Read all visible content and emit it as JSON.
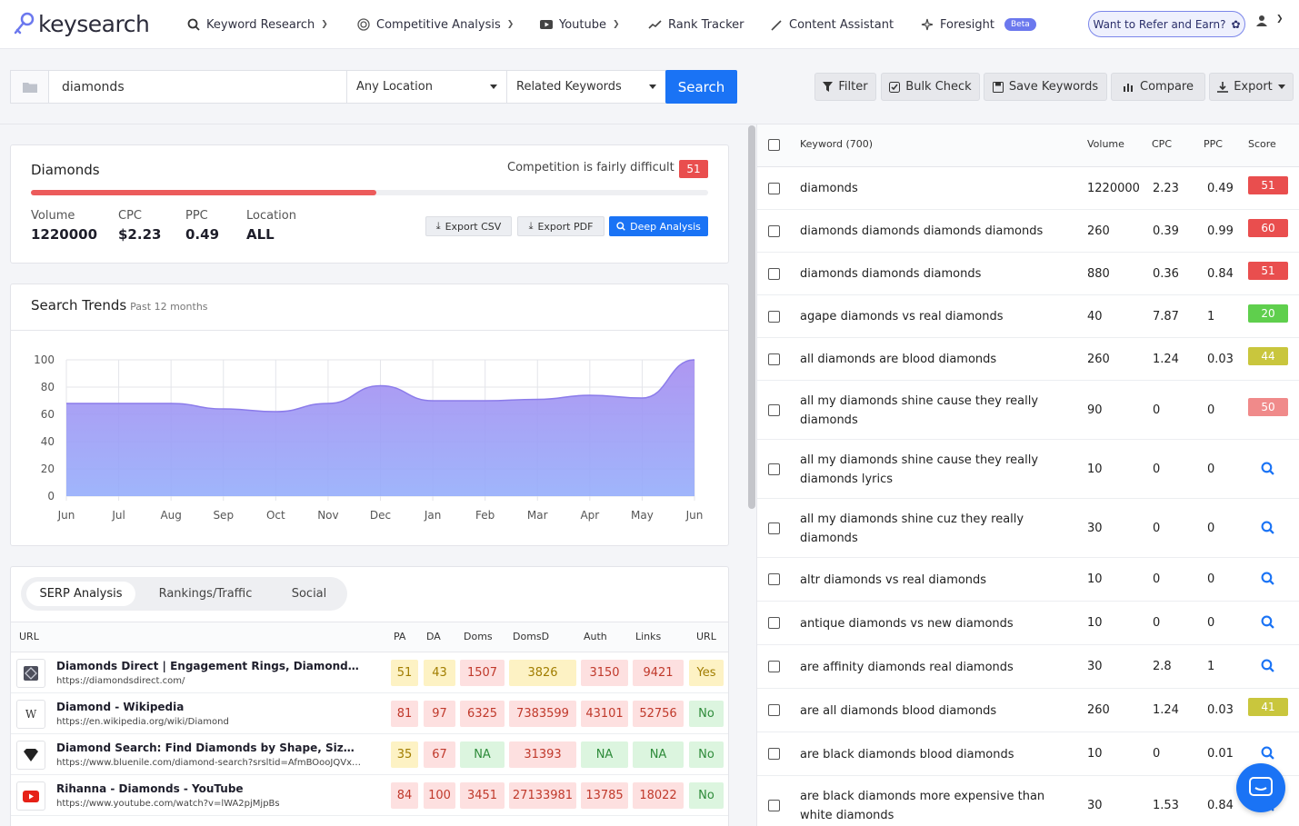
{
  "app": {
    "logo_text": "keysearch"
  },
  "nav": {
    "items": [
      {
        "label": "Keyword Research",
        "icon": "search-icon"
      },
      {
        "label": "Competitive Analysis",
        "icon": "target-icon"
      },
      {
        "label": "Youtube",
        "icon": "youtube-icon"
      },
      {
        "label": "Rank Tracker",
        "icon": "trend-icon"
      },
      {
        "label": "Content Assistant",
        "icon": "pen-icon"
      },
      {
        "label": "Foresight",
        "icon": "sparkle-icon"
      }
    ],
    "beta_label": "Beta",
    "refer_label": "Want to Refer and Earn?"
  },
  "search": {
    "keyword_value": "diamonds",
    "location_value": "Any Location",
    "mode_value": "Related Keywords",
    "search_label": "Search"
  },
  "toolbar": {
    "filter_label": "Filter",
    "bulk_label": "Bulk Check",
    "save_label": "Save Keywords",
    "compare_label": "Compare",
    "export_label": "Export"
  },
  "summary": {
    "title": "Diamonds",
    "competition_text": "Competition is fairly difficult",
    "score": "51",
    "score_color": "#e94e4e",
    "progress_fraction": 0.51,
    "metrics": [
      {
        "label": "Volume",
        "value": "1220000"
      },
      {
        "label": "CPC",
        "value": "$2.23"
      },
      {
        "label": "PPC",
        "value": "0.49"
      },
      {
        "label": "Location",
        "value": "ALL"
      }
    ],
    "export_csv_label": "Export CSV",
    "export_pdf_label": "Export PDF",
    "deep_analysis_label": "Deep Analysis"
  },
  "trends": {
    "title": "Search Trends",
    "subtitle": "Past 12 months"
  },
  "chart_data": {
    "type": "area",
    "title": "",
    "xlabel": "",
    "ylabel": "",
    "categories": [
      "Jun",
      "Jul",
      "Aug",
      "Sep",
      "Oct",
      "Nov",
      "Dec",
      "Jan",
      "Feb",
      "Mar",
      "Apr",
      "May",
      "Jun"
    ],
    "series": [
      {
        "values": [
          68,
          68,
          68,
          64,
          62,
          68,
          81,
          70,
          70,
          71,
          74,
          72,
          100
        ]
      }
    ],
    "ylim": [
      0,
      100
    ],
    "yticks": [
      0,
      20,
      40,
      60,
      80,
      100
    ],
    "grid": true,
    "fill_color": "#9aa4f5",
    "line_color": "#8b7bea"
  },
  "serp": {
    "tabs": [
      "SERP Analysis",
      "Rankings/Traffic",
      "Social"
    ],
    "headers": [
      "URL",
      "PA",
      "DA",
      "Doms",
      "DomsD",
      "Auth",
      "Links",
      "URL"
    ],
    "rows": [
      {
        "title": "Diamonds Direct | Engagement Rings, Diamonds, & Fine Jewelry",
        "url": "https://diamondsdirect.com/",
        "favicon": "diamond-grid-icon",
        "cells": [
          {
            "v": "51",
            "c": "yellow"
          },
          {
            "v": "43",
            "c": "yellow"
          },
          {
            "v": "1507",
            "c": "red"
          },
          {
            "v": "3826",
            "c": "yellow"
          },
          {
            "v": "3150",
            "c": "red"
          },
          {
            "v": "9421",
            "c": "red"
          },
          {
            "v": "Yes",
            "c": "yellow"
          }
        ]
      },
      {
        "title": "Diamond - Wikipedia",
        "url": "https://en.wikipedia.org/wiki/Diamond",
        "favicon": "wikipedia-icon",
        "cells": [
          {
            "v": "81",
            "c": "red"
          },
          {
            "v": "97",
            "c": "red"
          },
          {
            "v": "6325",
            "c": "red"
          },
          {
            "v": "7383599",
            "c": "red"
          },
          {
            "v": "43101",
            "c": "red"
          },
          {
            "v": "52756",
            "c": "red"
          },
          {
            "v": "No",
            "c": "green"
          }
        ]
      },
      {
        "title": "Diamond Search: Find Diamonds by Shape, Size, Quality & Price",
        "url": "https://www.bluenile.com/diamond-search?srsltid=AfmBOooJQVxyz",
        "favicon": "heart-diamond-icon",
        "cells": [
          {
            "v": "35",
            "c": "yellow"
          },
          {
            "v": "67",
            "c": "red"
          },
          {
            "v": "NA",
            "c": "green"
          },
          {
            "v": "31393",
            "c": "red"
          },
          {
            "v": "NA",
            "c": "green"
          },
          {
            "v": "NA",
            "c": "green"
          },
          {
            "v": "No",
            "c": "green"
          }
        ]
      },
      {
        "title": "Rihanna - Diamonds - YouTube",
        "url": "https://www.youtube.com/watch?v=lWA2pjMjpBs",
        "favicon": "youtube-icon",
        "cells": [
          {
            "v": "84",
            "c": "red"
          },
          {
            "v": "100",
            "c": "red"
          },
          {
            "v": "3451",
            "c": "red"
          },
          {
            "v": "27133981",
            "c": "red"
          },
          {
            "v": "13785",
            "c": "red"
          },
          {
            "v": "18022",
            "c": "red"
          },
          {
            "v": "No",
            "c": "green"
          }
        ]
      }
    ]
  },
  "keywords": {
    "headers": {
      "keyword": "Keyword (700)",
      "volume": "Volume",
      "cpc": "CPC",
      "ppc": "PPC",
      "score": "Score"
    },
    "rows": [
      {
        "kw": "diamonds",
        "vol": "1220000",
        "cpc": "2.23",
        "ppc": "0.49",
        "score": "51",
        "color": "#e94e4e"
      },
      {
        "kw": "diamonds diamonds diamonds diamonds",
        "vol": "260",
        "cpc": "0.39",
        "ppc": "0.99",
        "score": "60",
        "color": "#e94e4e"
      },
      {
        "kw": "diamonds diamonds diamonds",
        "vol": "880",
        "cpc": "0.36",
        "ppc": "0.84",
        "score": "51",
        "color": "#e94e4e"
      },
      {
        "kw": "agape diamonds vs real diamonds",
        "vol": "40",
        "cpc": "7.87",
        "ppc": "1",
        "score": "20",
        "color": "#5fcf4d"
      },
      {
        "kw": "all diamonds are blood diamonds",
        "vol": "260",
        "cpc": "1.24",
        "ppc": "0.03",
        "score": "44",
        "color": "#c9c63d"
      },
      {
        "kw": "all my diamonds shine cause they really diamonds",
        "vol": "90",
        "cpc": "0",
        "ppc": "0",
        "score": "50",
        "color": "#f08a8a"
      },
      {
        "kw": "all my diamonds shine cause they really diamonds lyrics",
        "vol": "10",
        "cpc": "0",
        "ppc": "0",
        "score": "",
        "color": ""
      },
      {
        "kw": "all my diamonds shine cuz they really diamonds",
        "vol": "30",
        "cpc": "0",
        "ppc": "0",
        "score": "",
        "color": ""
      },
      {
        "kw": "altr diamonds vs real diamonds",
        "vol": "10",
        "cpc": "0",
        "ppc": "0",
        "score": "",
        "color": ""
      },
      {
        "kw": "antique diamonds vs new diamonds",
        "vol": "10",
        "cpc": "0",
        "ppc": "0",
        "score": "",
        "color": ""
      },
      {
        "kw": "are affinity diamonds real diamonds",
        "vol": "30",
        "cpc": "2.8",
        "ppc": "1",
        "score": "",
        "color": ""
      },
      {
        "kw": "are all diamonds blood diamonds",
        "vol": "260",
        "cpc": "1.24",
        "ppc": "0.03",
        "score": "41",
        "color": "#c9c63d"
      },
      {
        "kw": "are black diamonds blood diamonds",
        "vol": "10",
        "cpc": "0",
        "ppc": "0.01",
        "score": "",
        "color": ""
      },
      {
        "kw": "are black diamonds more expensive than white diamonds",
        "vol": "30",
        "cpc": "1.53",
        "ppc": "0.84",
        "score": "",
        "color": ""
      }
    ]
  }
}
